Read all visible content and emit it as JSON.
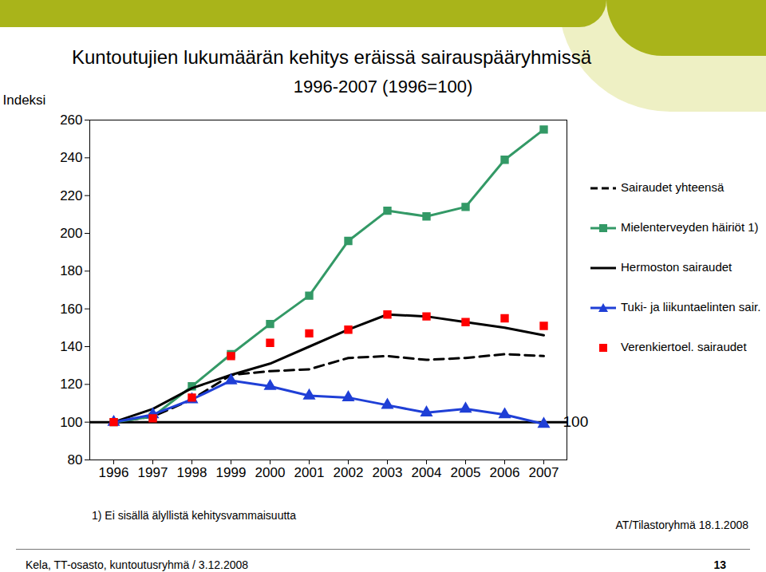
{
  "chart_data": {
    "type": "line",
    "title": "Kuntoutujien lukumäärän kehitys eräissä sairauspääryhmissä",
    "subtitle": "1996-2007 (1996=100)",
    "y_label": "Indeksi",
    "x": [
      1996,
      1997,
      1998,
      1999,
      2000,
      2001,
      2002,
      2003,
      2004,
      2005,
      2006,
      2007
    ],
    "series": [
      {
        "name": "Sairaudet yhteensä",
        "color": "#000000",
        "line_style": "dashed",
        "marker": "none",
        "values": [
          100,
          103,
          112,
          125,
          127,
          128,
          134,
          135,
          133,
          134,
          136,
          135
        ]
      },
      {
        "name": "Mielenterveyden häiriöt 1)",
        "color": "#339966",
        "line_style": "solid",
        "marker": "square",
        "values": [
          100,
          103,
          119,
          136,
          152,
          167,
          196,
          212,
          209,
          214,
          239,
          255
        ]
      },
      {
        "name": "Hermoston sairaudet",
        "color": "#000000",
        "line_style": "solid",
        "marker": "none",
        "values": [
          100,
          107,
          118,
          125,
          131,
          140,
          149,
          157,
          156,
          153,
          150,
          146
        ]
      },
      {
        "name": "Tuki- ja liikuntaelinten sair.",
        "color": "#1f3fd6",
        "line_style": "solid",
        "marker": "triangle",
        "values": [
          100,
          104,
          112,
          122,
          119,
          114,
          113,
          109,
          105,
          107,
          104,
          99
        ]
      },
      {
        "name": "Verenkiertoel. sairaudet",
        "color": "#ff0000",
        "line_style": "none",
        "marker": "square",
        "values": [
          100,
          102,
          113,
          135,
          142,
          147,
          149,
          157,
          156,
          153,
          155,
          151
        ]
      }
    ],
    "annotations": [
      {
        "y": 100,
        "text": "100"
      }
    ],
    "ylim": [
      80,
      260
    ],
    "yticks": [
      80,
      100,
      120,
      140,
      160,
      180,
      200,
      220,
      240,
      260
    ],
    "grid": false,
    "legend": "right",
    "footnote": "1) Ei sisällä älyllistä kehitysvammaisuutta",
    "source": "AT/Tilastoryhmä 18.1.2008",
    "footer": "Kela, TT-osasto, kuntoutusryhmä / 3.12.2008",
    "page_number": "13"
  }
}
